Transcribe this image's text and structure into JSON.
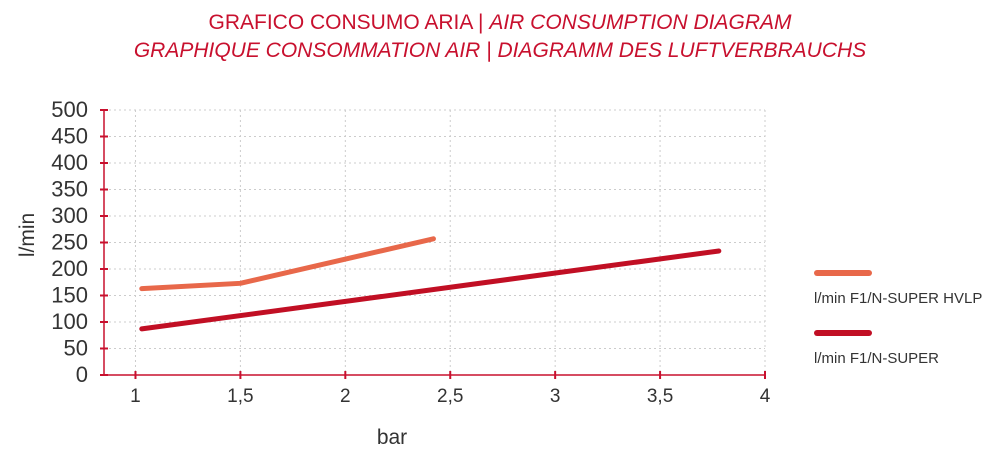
{
  "colors": {
    "title": "#c8102e",
    "axis": "#c8102e",
    "grid": "#cccccc",
    "series_hvlp": "#e8684a",
    "series_super": "#c10f24",
    "text": "#333333"
  },
  "title": {
    "line1_plain": "GRAFICO CONSUMO ARIA | ",
    "line1_italic": "AIR CONSUMPTION DIAGRAM",
    "line2_italic": "GRAPHIQUE CONSOMMATION AIR | DIAGRAMM DES LUFTVERBRAUCHS"
  },
  "chart_data": {
    "type": "line",
    "xlabel": "bar",
    "ylabel": "l/min",
    "xlim": [
      0.85,
      4
    ],
    "ylim": [
      0,
      500
    ],
    "x_ticks": [
      1,
      1.5,
      2,
      2.5,
      3,
      3.5,
      4
    ],
    "x_tick_labels": [
      "1",
      "1,5",
      "2",
      "2,5",
      "3",
      "3,5",
      "4"
    ],
    "y_ticks": [
      0,
      50,
      100,
      150,
      200,
      250,
      300,
      350,
      400,
      450,
      500
    ],
    "y_tick_labels": [
      "0",
      "50",
      "100",
      "150",
      "200",
      "250",
      "300",
      "350",
      "400",
      "450",
      "500"
    ],
    "grid": true,
    "legend_position": "right",
    "series": [
      {
        "name": "l/min F1/N-SUPER HVLP",
        "color": "#e8684a",
        "x": [
          1.03,
          1.5,
          2.42
        ],
        "y": [
          163,
          173,
          257
        ]
      },
      {
        "name": "l/min F1/N-SUPER",
        "color": "#c10f24",
        "x": [
          1.03,
          3.78
        ],
        "y": [
          87,
          234
        ]
      }
    ]
  }
}
